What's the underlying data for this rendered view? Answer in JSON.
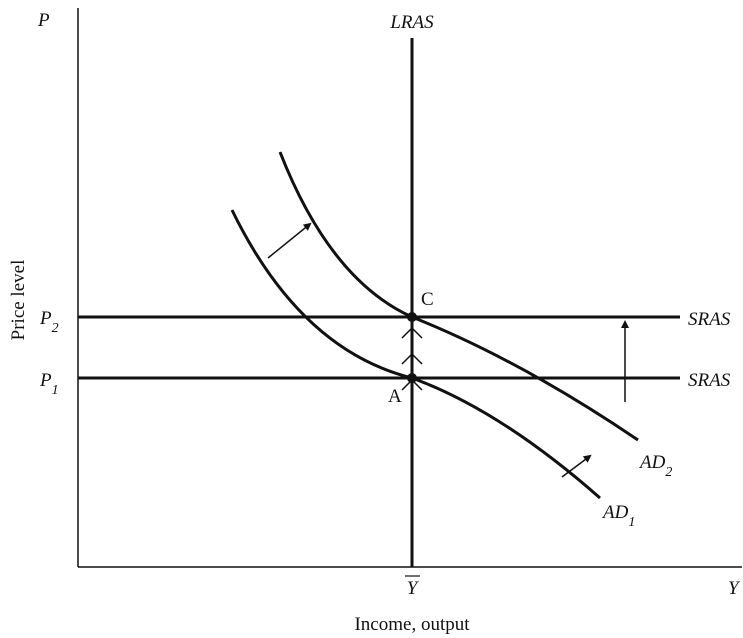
{
  "axes": {
    "y_axis": "P",
    "x_axis": "Y",
    "y_label": "Price level",
    "x_label": "Income, output",
    "x_mark": "Y"
  },
  "curves": {
    "lras": "LRAS",
    "sras_upper": "SRAS",
    "sras_lower": "SRAS",
    "ad_2": {
      "text": "AD",
      "sub": "2"
    },
    "ad_1": {
      "text": "AD",
      "sub": "1"
    }
  },
  "price_levels": {
    "p_2": {
      "text": "P",
      "sub": "2"
    },
    "p_1": {
      "text": "P",
      "sub": "1"
    }
  },
  "points": {
    "c": "C",
    "a": "A"
  }
}
